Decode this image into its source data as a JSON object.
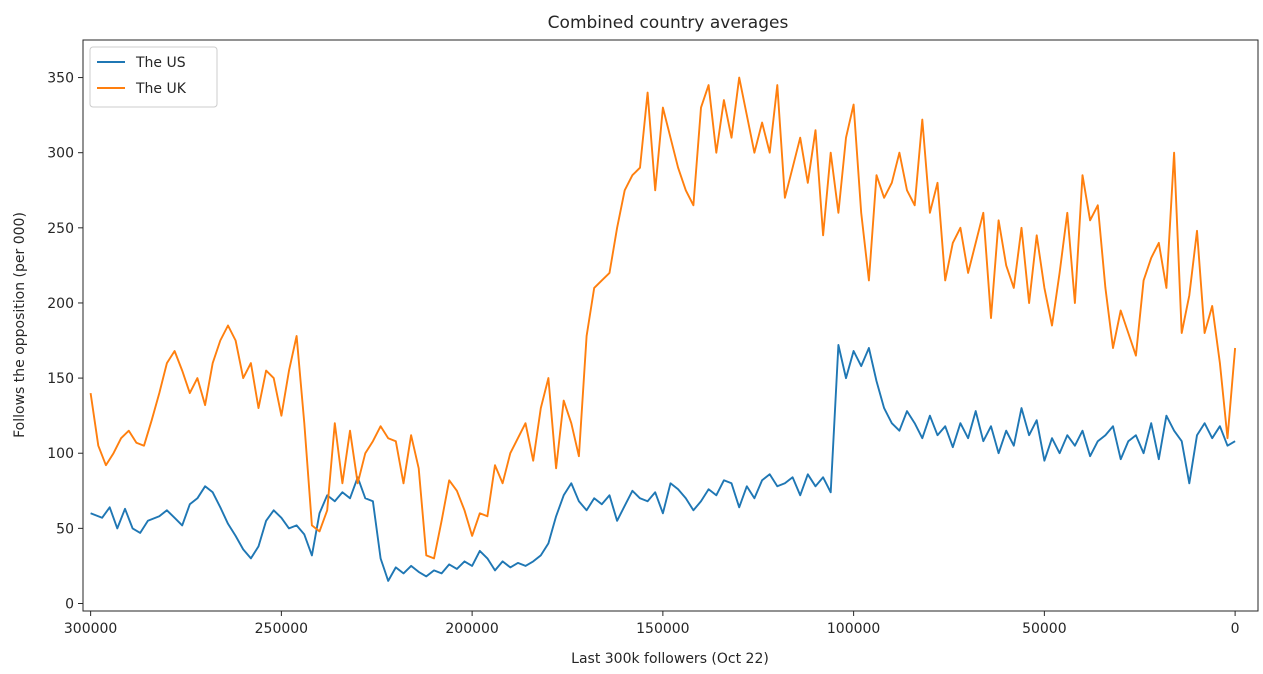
{
  "chart_data": {
    "type": "line",
    "title": "Combined country averages",
    "xlabel": "Last 300k followers (Oct 22)",
    "ylabel": "Follows the opposition (per 000)",
    "xlim": [
      302000,
      -6000
    ],
    "ylim": [
      -5,
      375
    ],
    "x_inverted": true,
    "grid": false,
    "legend_position": "top-left",
    "xticks": [
      300000,
      250000,
      200000,
      150000,
      100000,
      50000,
      0
    ],
    "xtick_labels": [
      "300000",
      "250000",
      "200000",
      "150000",
      "100000",
      "50000",
      "0"
    ],
    "yticks": [
      0,
      50,
      100,
      150,
      200,
      250,
      300,
      350
    ],
    "ytick_labels": [
      "0",
      "50",
      "100",
      "150",
      "200",
      "250",
      "300",
      "350"
    ],
    "series": [
      {
        "name": "The US",
        "color": "#1f77b4",
        "points": [
          [
            300000,
            60
          ],
          [
            297000,
            57
          ],
          [
            295000,
            64
          ],
          [
            293000,
            50
          ],
          [
            291000,
            63
          ],
          [
            289000,
            50
          ],
          [
            287000,
            47
          ],
          [
            285000,
            55
          ],
          [
            282000,
            58
          ],
          [
            280000,
            62
          ],
          [
            278000,
            57
          ],
          [
            276000,
            52
          ],
          [
            274000,
            66
          ],
          [
            272000,
            70
          ],
          [
            270000,
            78
          ],
          [
            268000,
            74
          ],
          [
            266000,
            64
          ],
          [
            264000,
            53
          ],
          [
            262000,
            45
          ],
          [
            260000,
            36
          ],
          [
            258000,
            30
          ],
          [
            256000,
            38
          ],
          [
            254000,
            55
          ],
          [
            252000,
            62
          ],
          [
            250000,
            57
          ],
          [
            248000,
            50
          ],
          [
            246000,
            52
          ],
          [
            244000,
            46
          ],
          [
            242000,
            32
          ],
          [
            240000,
            60
          ],
          [
            238000,
            72
          ],
          [
            236000,
            68
          ],
          [
            234000,
            74
          ],
          [
            232000,
            70
          ],
          [
            230000,
            84
          ],
          [
            228000,
            70
          ],
          [
            226000,
            68
          ],
          [
            224000,
            30
          ],
          [
            222000,
            15
          ],
          [
            220000,
            24
          ],
          [
            218000,
            20
          ],
          [
            216000,
            25
          ],
          [
            214000,
            21
          ],
          [
            212000,
            18
          ],
          [
            210000,
            22
          ],
          [
            208000,
            20
          ],
          [
            206000,
            26
          ],
          [
            204000,
            23
          ],
          [
            202000,
            28
          ],
          [
            200000,
            25
          ],
          [
            198000,
            35
          ],
          [
            196000,
            30
          ],
          [
            194000,
            22
          ],
          [
            192000,
            28
          ],
          [
            190000,
            24
          ],
          [
            188000,
            27
          ],
          [
            186000,
            25
          ],
          [
            184000,
            28
          ],
          [
            182000,
            32
          ],
          [
            180000,
            40
          ],
          [
            178000,
            58
          ],
          [
            176000,
            72
          ],
          [
            174000,
            80
          ],
          [
            172000,
            68
          ],
          [
            170000,
            62
          ],
          [
            168000,
            70
          ],
          [
            166000,
            66
          ],
          [
            164000,
            72
          ],
          [
            162000,
            55
          ],
          [
            160000,
            65
          ],
          [
            158000,
            75
          ],
          [
            156000,
            70
          ],
          [
            154000,
            68
          ],
          [
            152000,
            74
          ],
          [
            150000,
            60
          ],
          [
            148000,
            80
          ],
          [
            146000,
            76
          ],
          [
            144000,
            70
          ],
          [
            142000,
            62
          ],
          [
            140000,
            68
          ],
          [
            138000,
            76
          ],
          [
            136000,
            72
          ],
          [
            134000,
            82
          ],
          [
            132000,
            80
          ],
          [
            130000,
            64
          ],
          [
            128000,
            78
          ],
          [
            126000,
            70
          ],
          [
            124000,
            82
          ],
          [
            122000,
            86
          ],
          [
            120000,
            78
          ],
          [
            118000,
            80
          ],
          [
            116000,
            84
          ],
          [
            114000,
            72
          ],
          [
            112000,
            86
          ],
          [
            110000,
            78
          ],
          [
            108000,
            84
          ],
          [
            106000,
            74
          ],
          [
            104000,
            172
          ],
          [
            102000,
            150
          ],
          [
            100000,
            168
          ],
          [
            98000,
            158
          ],
          [
            96000,
            170
          ],
          [
            94000,
            148
          ],
          [
            92000,
            130
          ],
          [
            90000,
            120
          ],
          [
            88000,
            115
          ],
          [
            86000,
            128
          ],
          [
            84000,
            120
          ],
          [
            82000,
            110
          ],
          [
            80000,
            125
          ],
          [
            78000,
            112
          ],
          [
            76000,
            118
          ],
          [
            74000,
            104
          ],
          [
            72000,
            120
          ],
          [
            70000,
            110
          ],
          [
            68000,
            128
          ],
          [
            66000,
            108
          ],
          [
            64000,
            118
          ],
          [
            62000,
            100
          ],
          [
            60000,
            115
          ],
          [
            58000,
            105
          ],
          [
            56000,
            130
          ],
          [
            54000,
            112
          ],
          [
            52000,
            122
          ],
          [
            50000,
            95
          ],
          [
            48000,
            110
          ],
          [
            46000,
            100
          ],
          [
            44000,
            112
          ],
          [
            42000,
            105
          ],
          [
            40000,
            115
          ],
          [
            38000,
            98
          ],
          [
            36000,
            108
          ],
          [
            34000,
            112
          ],
          [
            32000,
            118
          ],
          [
            30000,
            96
          ],
          [
            28000,
            108
          ],
          [
            26000,
            112
          ],
          [
            24000,
            100
          ],
          [
            22000,
            120
          ],
          [
            20000,
            96
          ],
          [
            18000,
            125
          ],
          [
            16000,
            115
          ],
          [
            14000,
            108
          ],
          [
            12000,
            80
          ],
          [
            10000,
            112
          ],
          [
            8000,
            120
          ],
          [
            6000,
            110
          ],
          [
            4000,
            118
          ],
          [
            2000,
            105
          ],
          [
            0,
            108
          ]
        ]
      },
      {
        "name": "The UK",
        "color": "#ff7f0e",
        "points": [
          [
            300000,
            140
          ],
          [
            298000,
            105
          ],
          [
            296000,
            92
          ],
          [
            294000,
            100
          ],
          [
            292000,
            110
          ],
          [
            290000,
            115
          ],
          [
            288000,
            107
          ],
          [
            286000,
            105
          ],
          [
            284000,
            122
          ],
          [
            282000,
            140
          ],
          [
            280000,
            160
          ],
          [
            278000,
            168
          ],
          [
            276000,
            155
          ],
          [
            274000,
            140
          ],
          [
            272000,
            150
          ],
          [
            270000,
            132
          ],
          [
            268000,
            160
          ],
          [
            266000,
            175
          ],
          [
            264000,
            185
          ],
          [
            262000,
            175
          ],
          [
            260000,
            150
          ],
          [
            258000,
            160
          ],
          [
            256000,
            130
          ],
          [
            254000,
            155
          ],
          [
            252000,
            150
          ],
          [
            250000,
            125
          ],
          [
            248000,
            155
          ],
          [
            246000,
            178
          ],
          [
            244000,
            120
          ],
          [
            242000,
            52
          ],
          [
            240000,
            48
          ],
          [
            238000,
            62
          ],
          [
            236000,
            120
          ],
          [
            234000,
            80
          ],
          [
            232000,
            115
          ],
          [
            230000,
            80
          ],
          [
            228000,
            100
          ],
          [
            226000,
            108
          ],
          [
            224000,
            118
          ],
          [
            222000,
            110
          ],
          [
            220000,
            108
          ],
          [
            218000,
            80
          ],
          [
            216000,
            112
          ],
          [
            214000,
            90
          ],
          [
            212000,
            32
          ],
          [
            210000,
            30
          ],
          [
            208000,
            55
          ],
          [
            206000,
            82
          ],
          [
            204000,
            75
          ],
          [
            202000,
            62
          ],
          [
            200000,
            45
          ],
          [
            198000,
            60
          ],
          [
            196000,
            58
          ],
          [
            194000,
            92
          ],
          [
            192000,
            80
          ],
          [
            190000,
            100
          ],
          [
            188000,
            110
          ],
          [
            186000,
            120
          ],
          [
            184000,
            95
          ],
          [
            182000,
            130
          ],
          [
            180000,
            150
          ],
          [
            178000,
            90
          ],
          [
            176000,
            135
          ],
          [
            174000,
            120
          ],
          [
            172000,
            98
          ],
          [
            170000,
            178
          ],
          [
            168000,
            210
          ],
          [
            166000,
            215
          ],
          [
            164000,
            220
          ],
          [
            162000,
            250
          ],
          [
            160000,
            275
          ],
          [
            158000,
            285
          ],
          [
            156000,
            290
          ],
          [
            154000,
            340
          ],
          [
            152000,
            275
          ],
          [
            150000,
            330
          ],
          [
            148000,
            310
          ],
          [
            146000,
            290
          ],
          [
            144000,
            275
          ],
          [
            142000,
            265
          ],
          [
            140000,
            330
          ],
          [
            138000,
            345
          ],
          [
            136000,
            300
          ],
          [
            134000,
            335
          ],
          [
            132000,
            310
          ],
          [
            130000,
            350
          ],
          [
            128000,
            325
          ],
          [
            126000,
            300
          ],
          [
            124000,
            320
          ],
          [
            122000,
            300
          ],
          [
            120000,
            345
          ],
          [
            118000,
            270
          ],
          [
            116000,
            290
          ],
          [
            114000,
            310
          ],
          [
            112000,
            280
          ],
          [
            110000,
            315
          ],
          [
            108000,
            245
          ],
          [
            106000,
            300
          ],
          [
            104000,
            260
          ],
          [
            102000,
            310
          ],
          [
            100000,
            332
          ],
          [
            98000,
            260
          ],
          [
            96000,
            215
          ],
          [
            94000,
            285
          ],
          [
            92000,
            270
          ],
          [
            90000,
            280
          ],
          [
            88000,
            300
          ],
          [
            86000,
            275
          ],
          [
            84000,
            265
          ],
          [
            82000,
            322
          ],
          [
            80000,
            260
          ],
          [
            78000,
            280
          ],
          [
            76000,
            215
          ],
          [
            74000,
            240
          ],
          [
            72000,
            250
          ],
          [
            70000,
            220
          ],
          [
            68000,
            240
          ],
          [
            66000,
            260
          ],
          [
            64000,
            190
          ],
          [
            62000,
            255
          ],
          [
            60000,
            225
          ],
          [
            58000,
            210
          ],
          [
            56000,
            250
          ],
          [
            54000,
            200
          ],
          [
            52000,
            245
          ],
          [
            50000,
            210
          ],
          [
            48000,
            185
          ],
          [
            46000,
            220
          ],
          [
            44000,
            260
          ],
          [
            42000,
            200
          ],
          [
            40000,
            285
          ],
          [
            38000,
            255
          ],
          [
            36000,
            265
          ],
          [
            34000,
            210
          ],
          [
            32000,
            170
          ],
          [
            30000,
            195
          ],
          [
            28000,
            180
          ],
          [
            26000,
            165
          ],
          [
            24000,
            215
          ],
          [
            22000,
            230
          ],
          [
            20000,
            240
          ],
          [
            18000,
            210
          ],
          [
            16000,
            300
          ],
          [
            14000,
            180
          ],
          [
            12000,
            205
          ],
          [
            10000,
            248
          ],
          [
            8000,
            180
          ],
          [
            6000,
            198
          ],
          [
            4000,
            160
          ],
          [
            2000,
            110
          ],
          [
            0,
            170
          ]
        ]
      }
    ]
  }
}
